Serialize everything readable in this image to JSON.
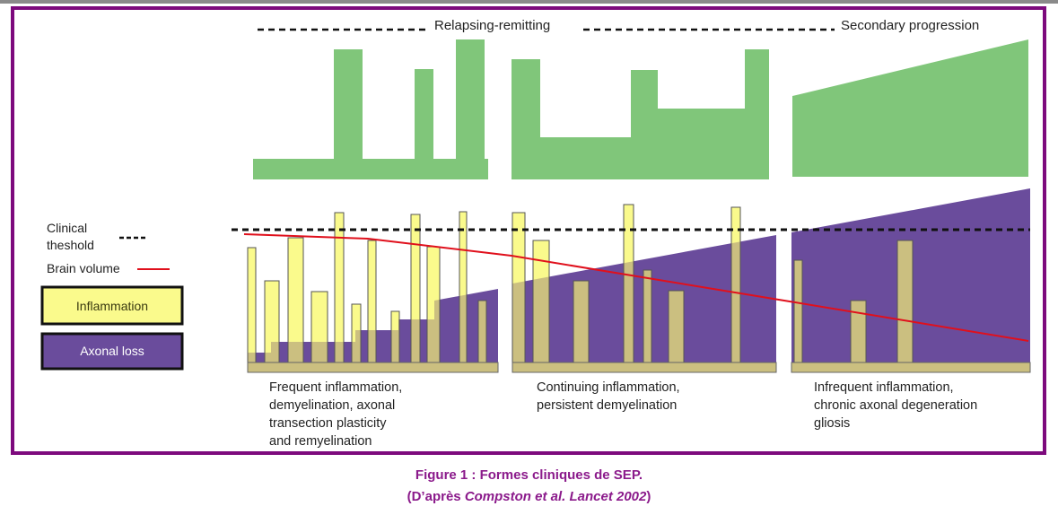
{
  "phases": {
    "relapsing_remitting": "Relapsing-remitting",
    "secondary_progression": "Secondary progression"
  },
  "legend": {
    "clinical_threshold": [
      "Clinical",
      "theshold"
    ],
    "brain_volume": "Brain volume",
    "inflammation": "Inflammation",
    "axonal_loss": "Axonal loss"
  },
  "captions": {
    "panel1": [
      "Frequent inflammation,",
      "demyelination, axonal",
      "transection plasticity",
      "and remyelination"
    ],
    "panel2": [
      "Continuing inflammation,",
      "persistent demyelination"
    ],
    "panel3": [
      "Infrequent inflammation,",
      "chronic axonal degeneration",
      "gliosis"
    ]
  },
  "figure_caption": {
    "title": "Figure 1 : Formes cliniques de SEP.",
    "source_prefix": "(D’après ",
    "source_italic": "Compston et al. Lancet 2002",
    "source_suffix": ")"
  },
  "colors": {
    "frame": "#7d0a7d",
    "disability": "#80c67a",
    "inflammation": "#fafa8c",
    "axonal_loss": "#6a4c9c",
    "tan": "#cbbf80",
    "brain_volume_line": "#e0101c",
    "caption": "#8b1a8b"
  }
}
